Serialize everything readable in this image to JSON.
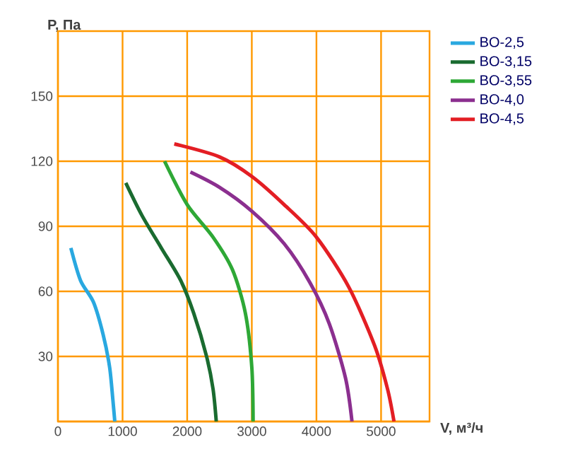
{
  "chart_data": {
    "type": "line",
    "xlabel": "V, м³/ч",
    "ylabel": "P, Па",
    "xlim": [
      0,
      5750
    ],
    "ylim": [
      0,
      180
    ],
    "xticks": [
      0,
      1000,
      2000,
      3000,
      4000,
      5000
    ],
    "yticks": [
      {
        "value": 0,
        "label": null
      },
      30,
      60,
      90,
      120,
      150
    ],
    "grid": true,
    "legend": "top right",
    "marker": "none",
    "line_style": "solid",
    "series": [
      {
        "name": "BO-2,5",
        "color": "#29a8e0",
        "x": [
          200,
          350,
          550,
          700,
          800,
          850,
          880
        ],
        "values": [
          80,
          65,
          55,
          40,
          25,
          10,
          0
        ]
      },
      {
        "name": "BO-3,15",
        "color": "#1a6b30",
        "x": [
          1050,
          1300,
          1600,
          1900,
          2100,
          2300,
          2400,
          2450
        ],
        "values": [
          110,
          95,
          80,
          65,
          50,
          30,
          15,
          0
        ]
      },
      {
        "name": "BO-3,55",
        "color": "#2ea836",
        "x": [
          1650,
          2000,
          2400,
          2700,
          2900,
          3000,
          3020
        ],
        "values": [
          120,
          100,
          85,
          70,
          50,
          25,
          0
        ]
      },
      {
        "name": "BO-4,0",
        "color": "#8b2f8f",
        "x": [
          2050,
          2500,
          3000,
          3500,
          3900,
          4200,
          4450,
          4550
        ],
        "values": [
          115,
          108,
          97,
          82,
          64,
          45,
          20,
          0
        ]
      },
      {
        "name": "BO-4,5",
        "color": "#e31e24",
        "x": [
          1800,
          2500,
          3000,
          3500,
          4000,
          4500,
          4900,
          5100,
          5200
        ],
        "values": [
          128,
          122,
          113,
          100,
          85,
          62,
          35,
          15,
          0
        ]
      }
    ]
  }
}
